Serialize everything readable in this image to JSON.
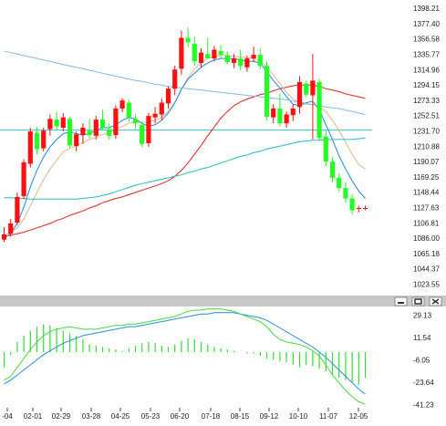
{
  "chart_data": [
    {
      "type": "candlestick",
      "title": "",
      "x_labels": [
        "-04",
        "02-01",
        "02-29",
        "03-28",
        "04-25",
        "05-23",
        "06-20",
        "07-18",
        "08-15",
        "09-12",
        "10-10",
        "11-07",
        "12-05"
      ],
      "y_ticks": [
        "1398.21",
        "1377.40",
        "1356.58",
        "1335.77",
        "1314.96",
        "1294.15",
        "1273.33",
        "1252.51",
        "1231.70",
        "1210.88",
        "1190.07",
        "1169.25",
        "1148.44",
        "1127.63",
        "1106.81",
        "1086.00",
        "1065.18",
        "1044.37",
        "1023.55"
      ],
      "ylim": [
        1013,
        1402
      ],
      "candles": [
        [
          1084,
          1101,
          1081,
          1091
        ],
        [
          1092,
          1112,
          1088,
          1106
        ],
        [
          1107,
          1148,
          1104,
          1142
        ],
        [
          1143,
          1193,
          1139,
          1189
        ],
        [
          1187,
          1236,
          1182,
          1231
        ],
        [
          1229,
          1237,
          1200,
          1207
        ],
        [
          1208,
          1236,
          1204,
          1232
        ],
        [
          1234,
          1254,
          1225,
          1248
        ],
        [
          1247,
          1258,
          1232,
          1238
        ],
        [
          1236,
          1256,
          1231,
          1250
        ],
        [
          1248,
          1251,
          1208,
          1212
        ],
        [
          1211,
          1231,
          1204,
          1227
        ],
        [
          1226,
          1242,
          1214,
          1236
        ],
        [
          1232,
          1248,
          1221,
          1226
        ],
        [
          1225,
          1252,
          1220,
          1247
        ],
        [
          1247,
          1260,
          1232,
          1236
        ],
        [
          1234,
          1242,
          1220,
          1225
        ],
        [
          1226,
          1266,
          1221,
          1262
        ],
        [
          1262,
          1276,
          1257,
          1273
        ],
        [
          1270,
          1274,
          1244,
          1250
        ],
        [
          1248,
          1254,
          1234,
          1242
        ],
        [
          1240,
          1244,
          1210,
          1214
        ],
        [
          1215,
          1256,
          1210,
          1252
        ],
        [
          1250,
          1264,
          1242,
          1255
        ],
        [
          1254,
          1276,
          1246,
          1270
        ],
        [
          1269,
          1292,
          1262,
          1289
        ],
        [
          1289,
          1320,
          1280,
          1315
        ],
        [
          1316,
          1368,
          1308,
          1358
        ],
        [
          1358,
          1372,
          1345,
          1352
        ],
        [
          1350,
          1360,
          1320,
          1326
        ],
        [
          1324,
          1344,
          1318,
          1338
        ],
        [
          1336,
          1358,
          1332,
          1330
        ],
        [
          1330,
          1347,
          1326,
          1342
        ],
        [
          1340,
          1348,
          1331,
          1335
        ],
        [
          1334,
          1339,
          1322,
          1325
        ],
        [
          1324,
          1336,
          1317,
          1330
        ],
        [
          1330,
          1342,
          1314,
          1320
        ],
        [
          1318,
          1334,
          1312,
          1330
        ],
        [
          1330,
          1346,
          1325,
          1335
        ],
        [
          1335,
          1344,
          1316,
          1320
        ],
        [
          1320,
          1326,
          1246,
          1251
        ],
        [
          1250,
          1268,
          1242,
          1262
        ],
        [
          1262,
          1282,
          1238,
          1242
        ],
        [
          1242,
          1258,
          1236,
          1254
        ],
        [
          1253,
          1268,
          1245,
          1262
        ],
        [
          1264,
          1306,
          1255,
          1298
        ],
        [
          1296,
          1300,
          1278,
          1281
        ],
        [
          1280,
          1336,
          1220,
          1300
        ],
        [
          1298,
          1302,
          1218,
          1222
        ],
        [
          1224,
          1232,
          1184,
          1190
        ],
        [
          1190,
          1196,
          1162,
          1168
        ],
        [
          1168,
          1174,
          1149,
          1154
        ],
        [
          1154,
          1162,
          1134,
          1140
        ],
        [
          1140,
          1146,
          1118,
          1124
        ],
        [
          1126,
          1130,
          1121,
          1127
        ],
        [
          1127,
          1130,
          1124,
          1127
        ]
      ],
      "overlays": [
        {
          "color": "#e02020",
          "values": [
            1088,
            1090,
            1092,
            1094,
            1097,
            1100,
            1103,
            1106,
            1110,
            1113,
            1117,
            1120,
            1123,
            1127,
            1130,
            1134,
            1137,
            1140,
            1142,
            1145,
            1148,
            1151,
            1154,
            1157,
            1160,
            1164,
            1170,
            1178,
            1188,
            1200,
            1212,
            1225,
            1237,
            1249,
            1258,
            1266,
            1271,
            1275,
            1278,
            1281,
            1283,
            1286,
            1289,
            1291,
            1293,
            1294,
            1294,
            1294,
            1292,
            1289,
            1287,
            1285,
            1282,
            1280,
            1278,
            1276
          ]
        },
        {
          "color": "#e8b48a",
          "values": [
            1090,
            1093,
            1100,
            1112,
            1130,
            1148,
            1165,
            1180,
            1192,
            1203,
            1208,
            1212,
            1216,
            1220,
            1223,
            1227,
            1229,
            1233,
            1238,
            1242,
            1244,
            1243,
            1244,
            1246,
            1250,
            1258,
            1270,
            1288,
            1304,
            1316,
            1324,
            1330,
            1333,
            1334,
            1334,
            1333,
            1332,
            1331,
            1330,
            1326,
            1318,
            1308,
            1296,
            1284,
            1275,
            1270,
            1268,
            1268,
            1265,
            1258,
            1246,
            1232,
            1216,
            1200,
            1186,
            1180
          ]
        },
        {
          "color": "#1e8ad8",
          "values": [
            1086,
            1092,
            1106,
            1128,
            1156,
            1178,
            1196,
            1210,
            1220,
            1228,
            1230,
            1228,
            1226,
            1228,
            1232,
            1236,
            1236,
            1240,
            1246,
            1250,
            1248,
            1242,
            1238,
            1240,
            1246,
            1256,
            1270,
            1288,
            1302,
            1310,
            1318,
            1324,
            1328,
            1330,
            1330,
            1330,
            1328,
            1326,
            1326,
            1324,
            1312,
            1300,
            1290,
            1278,
            1268,
            1266,
            1270,
            1272,
            1260,
            1240,
            1220,
            1198,
            1180,
            1164,
            1150,
            1140
          ]
        },
        {
          "color": "#22bdbd",
          "values": [
            1141,
            1141,
            1140,
            1140,
            1139,
            1139,
            1139,
            1139,
            1139,
            1139,
            1139,
            1139,
            1140,
            1141,
            1142,
            1144,
            1146,
            1149,
            1152,
            1155,
            1158,
            1160,
            1162,
            1164,
            1166,
            1168,
            1170,
            1172,
            1175,
            1177,
            1180,
            1182,
            1185,
            1188,
            1191,
            1194,
            1197,
            1199,
            1202,
            1204,
            1207,
            1209,
            1211,
            1213,
            1215,
            1217,
            1218,
            1219,
            1219,
            1220,
            1220,
            1220,
            1220,
            1220,
            1221,
            1222
          ]
        },
        {
          "color": "#88b8e0",
          "values": [
            1340,
            1338,
            1336,
            1334,
            1332,
            1330,
            1328,
            1326,
            1324,
            1322,
            1320,
            1318,
            1316,
            1314,
            1312,
            1310,
            1308,
            1306,
            1304,
            1302,
            1300,
            1299,
            1297,
            1295,
            1294,
            1292,
            1291,
            1290,
            1289,
            1288,
            1287,
            1286,
            1285,
            1284,
            1283,
            1282,
            1281,
            1280,
            1279,
            1278,
            1277,
            1276,
            1275,
            1274,
            1272,
            1271,
            1269,
            1267,
            1266,
            1264,
            1263,
            1262,
            1260,
            1258,
            1256,
            1254
          ]
        }
      ],
      "hline": 1232.8
    },
    {
      "type": "macd",
      "y_ticks": [
        "29.13",
        "11.54",
        "-6.05",
        "-23.64",
        "-41.23"
      ],
      "ylim": [
        -43,
        33
      ],
      "histogram": [
        -12,
        -2,
        8,
        13,
        17,
        20,
        22,
        21,
        19,
        17,
        15,
        13,
        10,
        6,
        5,
        4,
        3,
        2,
        1,
        3,
        5,
        7,
        8,
        7,
        5,
        4,
        6,
        9,
        11,
        10,
        8,
        6,
        4,
        3,
        2,
        1,
        0,
        -1,
        -1,
        -3,
        -5,
        -6,
        -7,
        -8,
        -10,
        -12,
        -10,
        -11,
        -13,
        -15,
        -18,
        -20,
        -22,
        -24,
        -26,
        -20
      ],
      "macd_line": [
        -22,
        -19,
        -12,
        -5,
        2,
        8,
        13,
        16,
        18,
        19,
        20,
        19,
        18,
        18,
        18,
        19,
        20,
        21,
        21,
        22,
        22,
        23,
        24,
        25,
        26,
        27,
        28,
        30,
        32,
        33,
        33,
        34,
        34,
        34,
        33,
        32,
        30,
        28,
        26,
        24,
        20,
        14,
        10,
        8,
        7,
        6,
        4,
        1,
        -3,
        -10,
        -18,
        -24,
        -30,
        -35,
        -39,
        -41
      ],
      "signal_line": [
        -25,
        -22,
        -18,
        -14,
        -10,
        -6,
        -2,
        1,
        4,
        7,
        9,
        11,
        13,
        14,
        15,
        16,
        17,
        18,
        19,
        20,
        20,
        21,
        22,
        23,
        24,
        25,
        26,
        27,
        28,
        29,
        30,
        30,
        31,
        31,
        31,
        31,
        30,
        29,
        28,
        27,
        25,
        22,
        19,
        16,
        13,
        10,
        7,
        4,
        0,
        -4,
        -9,
        -14,
        -19,
        -24,
        -29,
        -33
      ]
    }
  ],
  "window_buttons": {
    "minimize": "minimize-icon",
    "maximize": "maximize-icon",
    "close": "close-icon"
  },
  "colors": {
    "up": "#ff1010",
    "down": "#22ff22",
    "macd_line": "#3fdc3f",
    "signal_line": "#2a8ed8",
    "histogram": "#33dd33",
    "hline": "#35c4c4",
    "bg": "#ffffff",
    "panel_bar": "#c8c8c8"
  }
}
